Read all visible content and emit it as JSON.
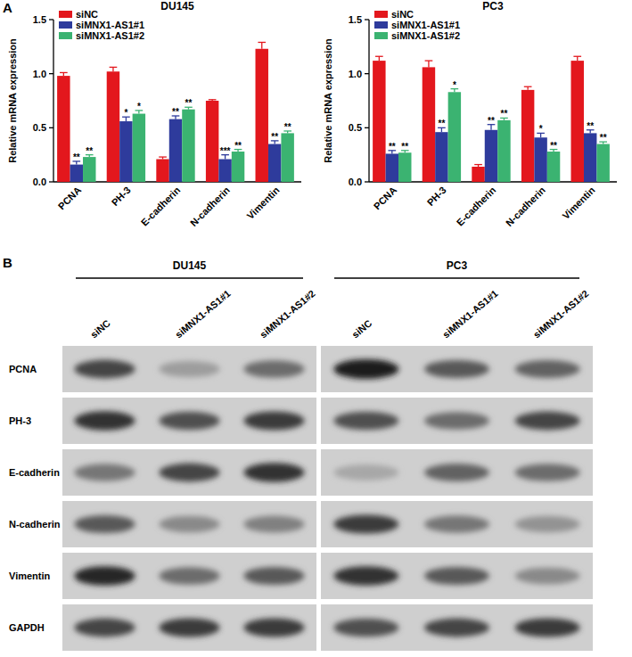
{
  "panel_labels": [
    "A",
    "B"
  ],
  "chart_data": [
    {
      "type": "bar",
      "title": "DU145",
      "ylabel": "Relative mRNA expression",
      "categories": [
        "PCNA",
        "PH-3",
        "E-cadherin",
        "N-cadherin",
        "Vimentin"
      ],
      "series": [
        {
          "name": "siNC",
          "color": "#e3171d",
          "values": [
            0.98,
            1.02,
            0.21,
            0.75,
            1.23
          ],
          "errors": [
            0.03,
            0.04,
            0.02,
            0.01,
            0.06
          ]
        },
        {
          "name": "siMNX1-AS1#1",
          "color": "#2e3b9c",
          "values": [
            0.16,
            0.56,
            0.58,
            0.21,
            0.35
          ],
          "errors": [
            0.03,
            0.04,
            0.03,
            0.04,
            0.03
          ],
          "significance": [
            "**",
            "*",
            "**",
            "***",
            "**"
          ]
        },
        {
          "name": "siMNX1-AS1#2",
          "color": "#3bb371",
          "values": [
            0.23,
            0.63,
            0.67,
            0.28,
            0.45
          ],
          "errors": [
            0.02,
            0.03,
            0.02,
            0.02,
            0.02
          ],
          "significance": [
            "**",
            "*",
            "**",
            "**",
            "**"
          ]
        }
      ],
      "ylim": [
        0,
        1.5
      ],
      "yticks": [
        {
          "value": 0,
          "label": "0.0"
        },
        0.5,
        {
          "value": 1,
          "label": "1.0"
        },
        1.5
      ],
      "grid": false,
      "legend": "upper left"
    },
    {
      "type": "bar",
      "title": "PC3",
      "ylabel": "Relative mRNA expression",
      "categories": [
        "PCNA",
        "PH-3",
        "E-cadherin",
        "N-cadherin",
        "Vimentin"
      ],
      "series": [
        {
          "name": "siNC",
          "color": "#e3171d",
          "values": [
            1.12,
            1.06,
            0.14,
            0.85,
            1.12
          ],
          "errors": [
            0.04,
            0.06,
            0.02,
            0.03,
            0.04
          ]
        },
        {
          "name": "siMNX1-AS1#1",
          "color": "#2e3b9c",
          "values": [
            0.26,
            0.46,
            0.48,
            0.41,
            0.45
          ],
          "errors": [
            0.03,
            0.04,
            0.05,
            0.04,
            0.03
          ],
          "significance": [
            "**",
            "**",
            "**",
            "*",
            "**"
          ]
        },
        {
          "name": "siMNX1-AS1#2",
          "color": "#3bb371",
          "values": [
            0.27,
            0.83,
            0.57,
            0.28,
            0.35
          ],
          "errors": [
            0.02,
            0.03,
            0.02,
            0.02,
            0.02
          ],
          "significance": [
            "**",
            "*",
            "**",
            "**",
            "**"
          ]
        }
      ],
      "ylim": [
        0,
        1.5
      ],
      "yticks": [
        {
          "value": 0,
          "label": "0.0"
        },
        0.5,
        {
          "value": 1,
          "label": "1.0"
        },
        1.5
      ],
      "grid": false,
      "legend": "upper left"
    }
  ],
  "blot": {
    "cell_lines": [
      {
        "name": "DU145",
        "lanes": [
          "siNC",
          "siMNX1-AS1#1",
          "siMNX1-AS1#2"
        ]
      },
      {
        "name": "PC3",
        "lanes": [
          "siNC",
          "siMNX1-AS1#1",
          "siMNX1-AS1#2"
        ]
      }
    ],
    "rows": [
      {
        "label": "PCNA",
        "intensity": [
          0.8,
          0.35,
          0.6,
          1.0,
          0.7,
          0.65
        ]
      },
      {
        "label": "PH-3",
        "intensity": [
          0.9,
          0.75,
          0.85,
          0.75,
          0.6,
          0.8
        ]
      },
      {
        "label": "E-cadherin",
        "intensity": [
          0.55,
          0.8,
          0.9,
          0.3,
          0.65,
          0.6
        ]
      },
      {
        "label": "N-cadherin",
        "intensity": [
          0.7,
          0.45,
          0.5,
          0.85,
          0.55,
          0.4
        ]
      },
      {
        "label": "Vimentin",
        "intensity": [
          0.95,
          0.6,
          0.7,
          0.9,
          0.7,
          0.45
        ]
      },
      {
        "label": "GAPDH",
        "intensity": [
          0.8,
          0.85,
          0.85,
          0.75,
          0.8,
          0.85
        ]
      }
    ]
  }
}
